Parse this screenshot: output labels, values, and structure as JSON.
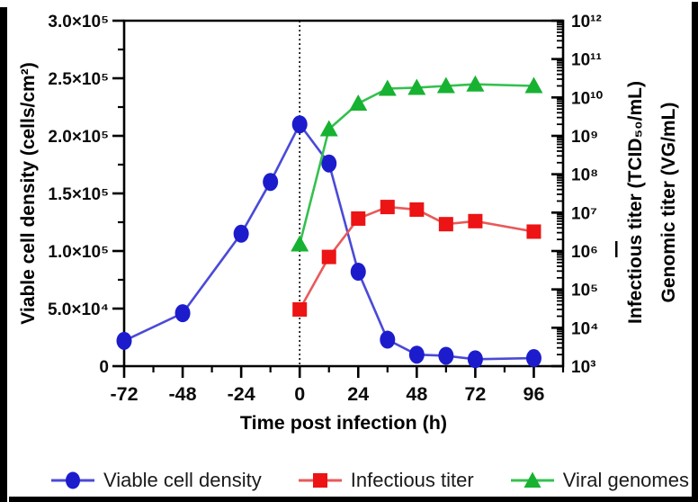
{
  "chart_data": {
    "type": "line",
    "title": "",
    "xlabel": "Time post infection (h)",
    "ylabel_left": "Viable cell density (cells/cm²)",
    "ylabel_right_line1": "Infectious titer (TCID₅₀/mL)",
    "ylabel_right_line2": "Genomic titer (VG/mL)",
    "axis_color": "#000000",
    "x_axis": {
      "min": -72,
      "max": 108,
      "minor_step": 12,
      "major_ticks": [
        -72,
        -48,
        -24,
        0,
        24,
        48,
        72,
        96
      ],
      "tick_labels": [
        "-72",
        "-48",
        "-24",
        "0",
        "24",
        "48",
        "72",
        "96"
      ]
    },
    "y_left": {
      "min": 0,
      "max": 300000,
      "minor_step": 25000,
      "tick_values": [
        0,
        50000,
        100000,
        150000,
        200000,
        250000,
        300000
      ],
      "tick_labels": [
        "0",
        "5.0×10⁴",
        "1.0×10⁵",
        "1.5×10⁵",
        "2.0×10⁵",
        "2.5×10⁵",
        "3.0×10⁵"
      ]
    },
    "y_right": {
      "log": true,
      "min_exp": 3,
      "max_exp": 12,
      "tick_labels": [
        "10³",
        "10⁴",
        "10⁵",
        "10⁶",
        "10⁷",
        "10⁸",
        "10⁹",
        "10¹⁰",
        "10¹¹",
        "10¹²"
      ]
    },
    "annotation_line": {
      "x": 0,
      "style": "dotted",
      "color": "#000000"
    },
    "series": [
      {
        "name": "Viable cell density",
        "axis": "left",
        "marker": "circle",
        "color": "#1c1ccd",
        "line_color": "#4a4ad8",
        "x": [
          -72,
          -48,
          -24,
          -12,
          0,
          12,
          24,
          36,
          48,
          60,
          72,
          96
        ],
        "y": [
          22000,
          46000,
          115000,
          160000,
          210000,
          176000,
          82000,
          23000,
          10000,
          9000,
          6000,
          7000
        ]
      },
      {
        "name": "Infectious titer",
        "axis": "right",
        "marker": "square",
        "color": "#ec1414",
        "line_color": "#e85a5a",
        "x": [
          0,
          12,
          24,
          36,
          48,
          60,
          72,
          96
        ],
        "y": [
          30000,
          700000,
          7000000,
          14000000,
          12000000,
          5000000,
          6000000,
          3200000
        ]
      },
      {
        "name": "Viral genomes",
        "axis": "right",
        "marker": "triangle",
        "color": "#17b231",
        "line_color": "#35c04f",
        "x": [
          0,
          12,
          24,
          36,
          48,
          60,
          72,
          96
        ],
        "y": [
          1500000,
          1500000000,
          7000000000,
          17000000000,
          18000000000,
          20000000000,
          22000000000,
          20000000000
        ]
      }
    ],
    "legend": {
      "position": "bottom",
      "items": [
        "Viable cell density",
        "Infectious titer",
        "Viral genomes"
      ]
    }
  }
}
